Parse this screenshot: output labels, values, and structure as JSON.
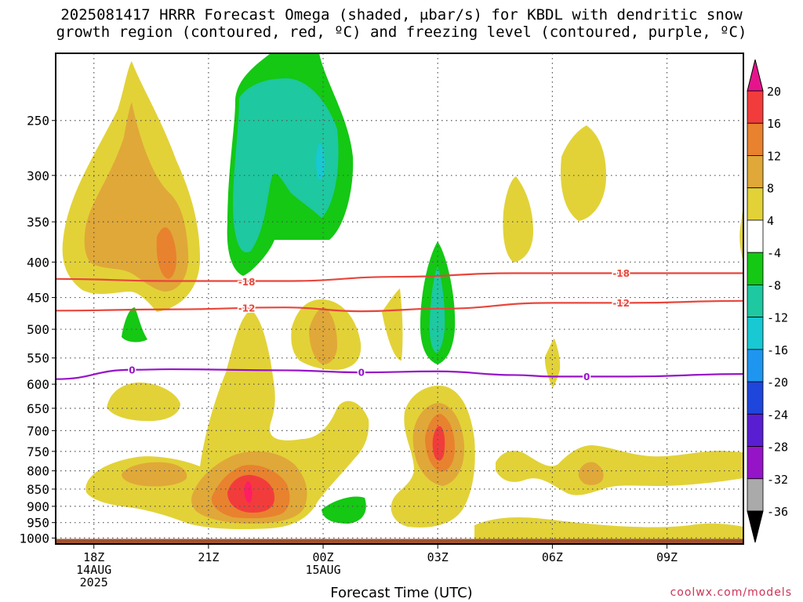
{
  "title": {
    "line1": "2025081417 HRRR Forecast Omega (shaded, μbar/s) for KBDL with dendritic snow",
    "line2": "growth region (contoured, red, ºC) and freezing level (contoured, purple, ºC)"
  },
  "credit": "coolwx.com/models",
  "chart_data": {
    "type": "heatmap",
    "title": "2025081417 HRRR Forecast Omega (shaded, μbar/s) for KBDL with dendritic snow growth region (contoured, red, ºC) and freezing level (contoured, purple, ºC)",
    "xlabel": "Forecast Time (UTC)",
    "ylabel": "",
    "y_scale": "log-pressure (inverted)",
    "ylim_hpa": [
      1020,
      200
    ],
    "xlim_hours_since_2025081417Z": [
      0,
      18
    ],
    "grid": "dotted",
    "y_ticks": [
      250,
      300,
      350,
      400,
      450,
      500,
      550,
      600,
      650,
      700,
      750,
      800,
      850,
      900,
      950,
      1000
    ],
    "x_ticks": [
      {
        "hour": 1,
        "label": "18Z",
        "label2": "14AUG",
        "label3": "2025"
      },
      {
        "hour": 4,
        "label": "21Z"
      },
      {
        "hour": 7,
        "label": "00Z",
        "label2": "15AUG"
      },
      {
        "hour": 10,
        "label": "03Z"
      },
      {
        "hour": 13,
        "label": "06Z"
      },
      {
        "hour": 16,
        "label": "09Z"
      }
    ],
    "colorbar": {
      "labels": [
        "20",
        "16",
        "12",
        "8",
        "4",
        "-4",
        "-8",
        "-12",
        "-16",
        "-20",
        "-24",
        "-28",
        "-32",
        "-36"
      ],
      "bins": [
        {
          "lo": 16,
          "hi": 20,
          "color": "#f23c3c"
        },
        {
          "lo": 12,
          "hi": 16,
          "color": "#e8822e"
        },
        {
          "lo": 8,
          "hi": 12,
          "color": "#e0a838"
        },
        {
          "lo": 4,
          "hi": 8,
          "color": "#e2d238"
        },
        {
          "lo": -4,
          "hi": 4,
          "color": "#ffffff"
        },
        {
          "lo": -8,
          "hi": -4,
          "color": "#14c814"
        },
        {
          "lo": -12,
          "hi": -8,
          "color": "#1ec8a0"
        },
        {
          "lo": -16,
          "hi": -12,
          "color": "#18c8d2"
        },
        {
          "lo": -20,
          "hi": -16,
          "color": "#1e96f0"
        },
        {
          "lo": -24,
          "hi": -20,
          "color": "#1e46dc"
        },
        {
          "lo": -28,
          "hi": -24,
          "color": "#5a1ed2"
        },
        {
          "lo": -32,
          "hi": -28,
          "color": "#9614c8"
        },
        {
          "lo": -36,
          "hi": -32,
          "color": "#aaaaaa"
        }
      ],
      "over_color": "#e6148c",
      "under_color": "#000000"
    },
    "omega_features": [
      {
        "hour": 2.0,
        "p": 380,
        "bands": [
          4,
          8,
          12
        ],
        "note": "upper-level ascent"
      },
      {
        "hour": 5.9,
        "p": 320,
        "bands": [
          -4,
          -8,
          -12
        ],
        "note": "upper-level subsidence"
      },
      {
        "hour": 10.0,
        "p": 480,
        "bands": [
          -4,
          -8,
          -12
        ],
        "note": "mid-level subsidence"
      },
      {
        "hour": 4.9,
        "p": 880,
        "bands": [
          4,
          8,
          12,
          16
        ],
        "note": "low-level ascent maximum"
      },
      {
        "hour": 10.0,
        "p": 740,
        "bands": [
          4,
          8,
          12,
          16
        ],
        "note": "low-level ascent maximum"
      },
      {
        "hour": 14.0,
        "p": 830,
        "bands": [
          4,
          8
        ],
        "note": "low-level ascent"
      },
      {
        "hour": 7.4,
        "p": 945,
        "bands": [
          -4
        ],
        "note": "weak subsidence"
      },
      {
        "hour": 1.8,
        "p": 515,
        "bands": [
          -4
        ],
        "note": "weak subsidence"
      }
    ],
    "series": [
      {
        "name": "-18",
        "color": "#e8463c",
        "x": [
          0,
          3,
          6,
          9,
          12,
          15,
          18
        ],
        "y": [
          423,
          426,
          426,
          420,
          415,
          415,
          415
        ]
      },
      {
        "name": "-12",
        "color": "#e8463c",
        "x": [
          0,
          3,
          6,
          8,
          10,
          13,
          15,
          18
        ],
        "y": [
          470,
          468,
          465,
          471,
          467,
          458,
          458,
          455
        ]
      },
      {
        "name": "0",
        "color": "#9614c8",
        "x": [
          0,
          2,
          3,
          6,
          8,
          10,
          12,
          13,
          15,
          18
        ],
        "y": [
          590,
          572,
          571,
          573,
          577,
          575,
          582,
          585,
          585,
          580
        ]
      }
    ],
    "contour_labels": [
      {
        "text": "-18",
        "hour": 5.0,
        "p": 427,
        "series": "-18"
      },
      {
        "text": "-18",
        "hour": 14.8,
        "p": 415,
        "series": "-18"
      },
      {
        "text": "-12",
        "hour": 5.0,
        "p": 466,
        "series": "-12"
      },
      {
        "text": "-12",
        "hour": 14.8,
        "p": 458,
        "series": "-12"
      },
      {
        "text": "0",
        "hour": 2.0,
        "p": 572,
        "series": "0"
      },
      {
        "text": "0",
        "hour": 8.0,
        "p": 577,
        "series": "0"
      },
      {
        "text": "0",
        "hour": 13.9,
        "p": 585,
        "series": "0"
      }
    ],
    "ground": {
      "p": 1020,
      "top_p": 1003,
      "color": "#a0522d"
    }
  }
}
